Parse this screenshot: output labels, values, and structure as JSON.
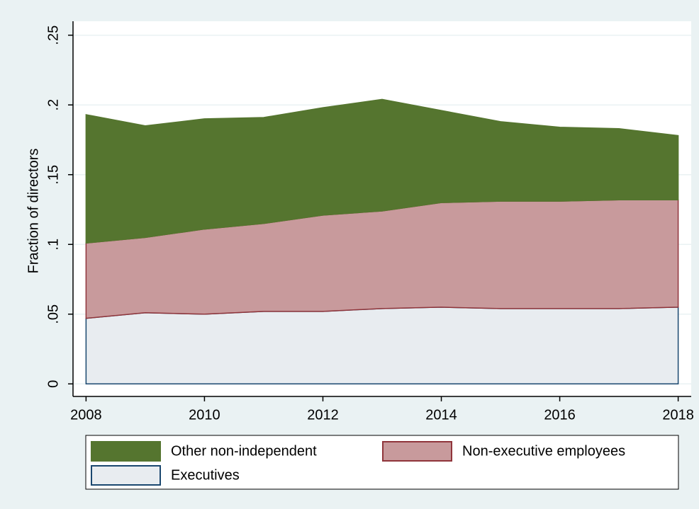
{
  "chart_data": {
    "type": "area",
    "y_label": "Fraction of directors",
    "x": [
      2008,
      2009,
      2010,
      2011,
      2012,
      2013,
      2014,
      2015,
      2016,
      2017,
      2018
    ],
    "series": [
      {
        "name": "Other non-independent",
        "color": "#55752f",
        "edge": "#55752f",
        "values": [
          0.092,
          0.08,
          0.079,
          0.076,
          0.077,
          0.08,
          0.066,
          0.057,
          0.053,
          0.051,
          0.046
        ]
      },
      {
        "name": "Non-executive employees",
        "color": "#c89a9c",
        "edge": "#90353b",
        "values": [
          0.054,
          0.054,
          0.061,
          0.063,
          0.069,
          0.07,
          0.075,
          0.077,
          0.077,
          0.078,
          0.077
        ]
      },
      {
        "name": "Executives",
        "color": "#e8ecf0",
        "edge": "#1a476f",
        "values": [
          0.047,
          0.051,
          0.05,
          0.052,
          0.052,
          0.054,
          0.055,
          0.054,
          0.054,
          0.054,
          0.055
        ]
      }
    ],
    "xlim": [
      2007.78,
      2018.22
    ],
    "xticks": [
      2008,
      2010,
      2012,
      2014,
      2016,
      2018
    ],
    "ylim": [
      -0.009,
      0.26
    ],
    "yticks": [
      0,
      {
        "value": 0.05,
        "label": ".05"
      },
      {
        "value": 0.1,
        "label": ".1"
      },
      {
        "value": 0.15,
        "label": ".15"
      },
      {
        "value": 0.2,
        "label": ".2"
      },
      {
        "value": 0.25,
        "label": ".25"
      }
    ],
    "grid": true
  }
}
